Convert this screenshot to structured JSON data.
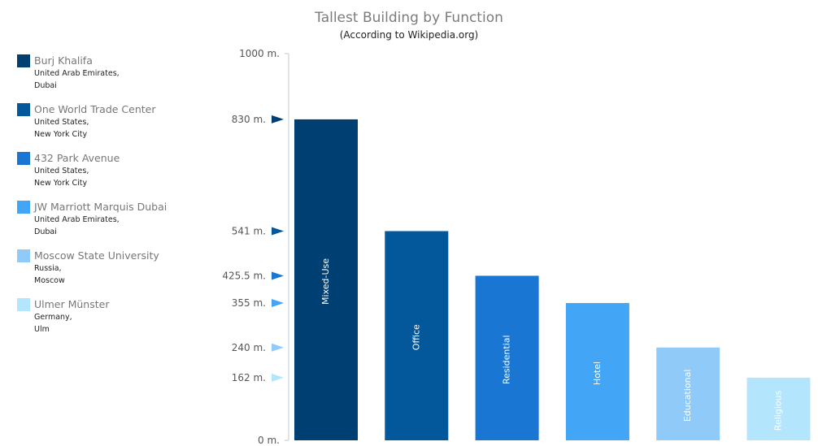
{
  "chart_data": {
    "type": "bar",
    "title": "Tallest Building by Function",
    "subtitle": "(According to Wikipedia.org)",
    "categories": [
      "Mixed-Use",
      "Office",
      "Residential",
      "Hotel",
      "Educational",
      "Religious"
    ],
    "values": [
      830,
      541,
      425.5,
      355,
      240,
      162
    ],
    "colors": [
      "#003f72",
      "#03589c",
      "#1976d2",
      "#42a5f5",
      "#90caf9",
      "#b3e5fc"
    ],
    "ylim": [
      0,
      1000
    ],
    "yticks": [
      {
        "value": 1000,
        "label": "1000 m."
      },
      {
        "value": 830,
        "label": "830 m."
      },
      {
        "value": 541,
        "label": "541 m."
      },
      {
        "value": 425.5,
        "label": "425.5 m."
      },
      {
        "value": 355,
        "label": "355 m."
      },
      {
        "value": 240,
        "label": "240 m."
      },
      {
        "value": 162,
        "label": "162 m."
      },
      {
        "value": 0,
        "label": "0 m."
      }
    ],
    "legend_position": "left",
    "legend": [
      {
        "name": "Burj Khalifa",
        "country": "United Arab Emirates,",
        "city": "Dubai"
      },
      {
        "name": "One World Trade Center",
        "country": "United States,",
        "city": "New York City"
      },
      {
        "name": "432 Park Avenue",
        "country": "United States,",
        "city": "New York City"
      },
      {
        "name": "JW Marriott Marquis Dubai",
        "country": "United Arab Emirates,",
        "city": "Dubai"
      },
      {
        "name": "Moscow State University",
        "country": "Russia,",
        "city": "Moscow"
      },
      {
        "name": "Ulmer Münster",
        "country": "Germany,",
        "city": "Ulm"
      }
    ]
  }
}
